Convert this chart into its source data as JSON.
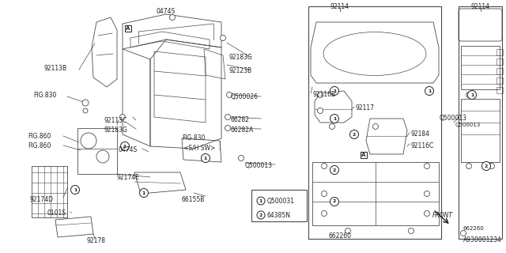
{
  "bg_color": "#ffffff",
  "line_color": "#4a4a4a",
  "text_color": "#222222",
  "diagram_number": "A930001234",
  "legend": [
    {
      "num": "1",
      "code": "Q500031"
    },
    {
      "num": "2",
      "code": "64385N"
    }
  ]
}
